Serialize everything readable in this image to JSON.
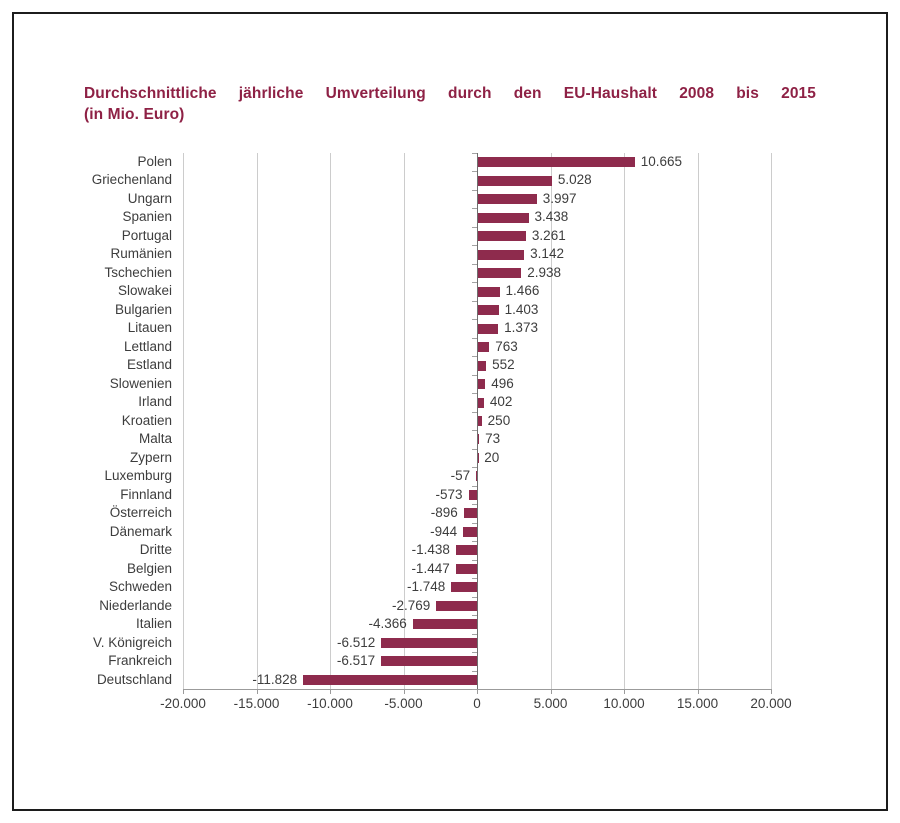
{
  "title": {
    "line1": "Durchschnittliche jährliche Umverteilung durch den EU-Haushalt 2008 bis 2015",
    "line2": "(in Mio. Euro)"
  },
  "colors": {
    "bar": "#8e2b4d",
    "title_text": "#8e2145",
    "label_text": "#3d3d3d",
    "gridline": "#cccccc",
    "zero_axis": "#6f6f6f",
    "bottom_axis": "#9b9b9b",
    "frame_border": "#1c1c1c"
  },
  "chart_data": {
    "type": "bar",
    "orientation": "horizontal",
    "title": "Durchschnittliche jährliche Umverteilung durch den EU-Haushalt 2008 bis 2015 (in Mio. Euro)",
    "xlabel": "",
    "ylabel": "",
    "xlim": [
      -20000,
      20000
    ],
    "grid": true,
    "legend": false,
    "categories": [
      "Polen",
      "Griechenland",
      "Ungarn",
      "Spanien",
      "Portugal",
      "Rumänien",
      "Tschechien",
      "Slowakei",
      "Bulgarien",
      "Litauen",
      "Lettland",
      "Estland",
      "Slowenien",
      "Irland",
      "Kroatien",
      "Malta",
      "Zypern",
      "Luxemburg",
      "Finnland",
      "Österreich",
      "Dänemark",
      "Dritte",
      "Belgien",
      "Schweden",
      "Niederlande",
      "Italien",
      "V. Königreich",
      "Frankreich",
      "Deutschland"
    ],
    "values": [
      10665,
      5028,
      3997,
      3438,
      3261,
      3142,
      2938,
      1466,
      1403,
      1373,
      763,
      552,
      496,
      402,
      250,
      73,
      20,
      -57,
      -573,
      -896,
      -944,
      -1438,
      -1447,
      -1748,
      -2769,
      -4366,
      -6512,
      -6517,
      -11828
    ],
    "value_labels": [
      "10.665",
      "5.028",
      "3.997",
      "3.438",
      "3.261",
      "3.142",
      "2.938",
      "1.466",
      "1.403",
      "1.373",
      "763",
      "552",
      "496",
      "402",
      "250",
      "73",
      "20",
      "-57",
      "-573",
      "-896",
      "-944",
      "-1.438",
      "-1.447",
      "-1.748",
      "-2.769",
      "-4.366",
      "-6.512",
      "-6.517",
      "-11.828"
    ],
    "x_ticks": [
      -20000,
      -15000,
      -10000,
      -5000,
      0,
      5000,
      10000,
      15000,
      20000
    ],
    "x_tick_labels": [
      "-20.000",
      "-15.000",
      "-10.000",
      "-5.000",
      "0",
      "5.000",
      "10.000",
      "15.000",
      "20.000"
    ]
  }
}
